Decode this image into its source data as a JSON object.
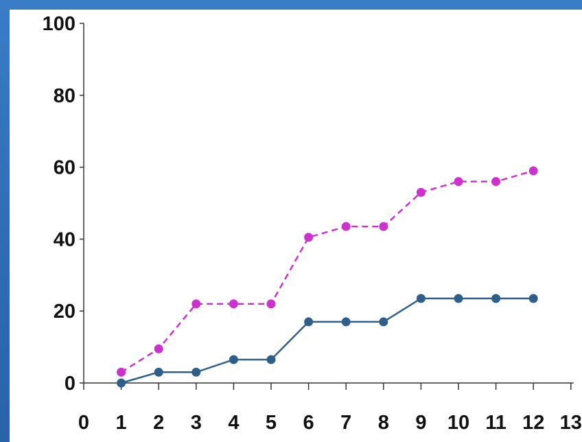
{
  "chart_data": {
    "type": "line",
    "title": "",
    "xlabel": "",
    "ylabel": "",
    "xlim": [
      0,
      13
    ],
    "ylim": [
      0,
      100
    ],
    "x_ticks": [
      "0",
      "1",
      "2",
      "3",
      "4",
      "5",
      "6",
      "7",
      "8",
      "9",
      "10",
      "11",
      "12",
      "13"
    ],
    "y_ticks": [
      "0",
      "20",
      "40",
      "60",
      "80",
      "100"
    ],
    "grid": false,
    "legend": "none",
    "series": [
      {
        "color": "#cc33cc",
        "line_style": "dashed",
        "x": [
          1,
          2,
          3,
          4,
          5,
          6,
          7,
          8,
          9,
          10,
          11,
          12
        ],
        "values": [
          3,
          9.5,
          22,
          22,
          22,
          40.5,
          43.5,
          43.5,
          53,
          56,
          56,
          59
        ]
      },
      {
        "color": "#2e5f8a",
        "line_style": "solid",
        "x": [
          1,
          2,
          3,
          4,
          5,
          6,
          7,
          8,
          9,
          10,
          11,
          12
        ],
        "values": [
          0,
          3,
          3,
          6.5,
          6.5,
          17,
          17,
          17,
          23.5,
          23.5,
          23.5,
          23.5
        ]
      }
    ]
  },
  "colors": {
    "background": "#2f6fb8",
    "plot_background": "#ffffff",
    "axis": "#333333"
  }
}
